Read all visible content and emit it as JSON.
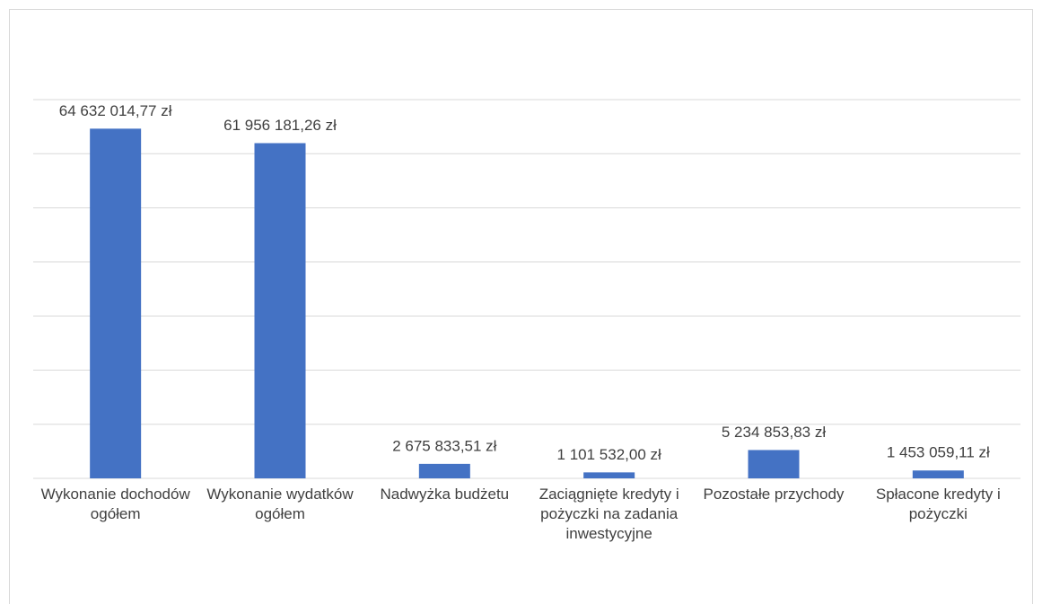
{
  "chart_data": {
    "type": "bar",
    "categories": [
      "Wykonanie dochodów ogółem",
      "Wykonanie wydatków ogółem",
      "Nadwyżka budżetu",
      "Zaciągnięte kredyty i pożyczki na zadania inwestycyjne",
      "Pozostałe przychody",
      "Spłacone kredyty i pożyczki"
    ],
    "values": [
      64632014.77,
      61956181.26,
      2675833.51,
      1101532.0,
      5234853.83,
      1453059.11
    ],
    "value_labels": [
      "64 632 014,77 zł",
      "61 956 181,26 zł",
      "2 675 833,51 zł",
      "1 101 532,00 zł",
      "5 234 853,83 zł",
      "1 453 059,11 zł"
    ],
    "color": "#4472c4",
    "ylim": [
      0,
      70000000
    ],
    "yticks": [
      0,
      10000000,
      20000000,
      30000000,
      40000000,
      50000000,
      60000000,
      70000000
    ],
    "grid": true
  }
}
